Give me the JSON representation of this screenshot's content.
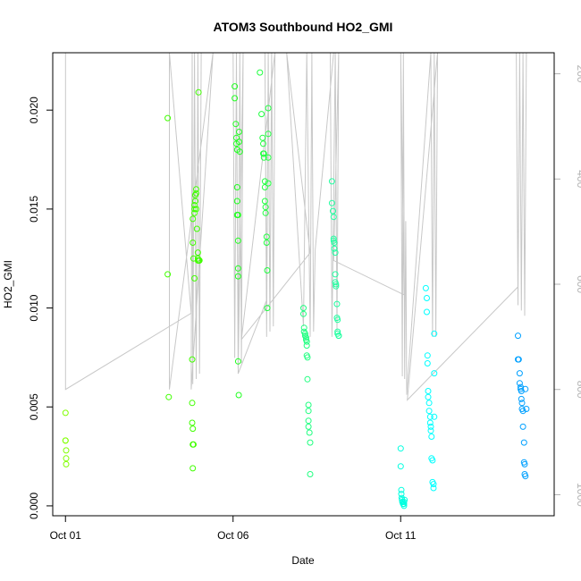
{
  "chart_data": {
    "type": "scatter",
    "title": "ATOM3 Southbound HO2_GMI",
    "xlabel": "Date",
    "ylabel": "HO2_GMI",
    "x_tick_labels": [
      "Oct 01",
      "Oct 06",
      "Oct 11"
    ],
    "x_tick_days": [
      1,
      6,
      11
    ],
    "xlim": [
      0.62,
      15.58
    ],
    "ylim": [
      -0.0005,
      0.0229
    ],
    "y_ticks": [
      0.0,
      0.005,
      0.01,
      0.015,
      0.02
    ],
    "y_tick_labels": [
      "0.000",
      "0.005",
      "0.010",
      "0.015",
      "0.020"
    ],
    "right_axis": {
      "ticks": [
        200,
        400,
        600,
        800,
        1000
      ],
      "tick_labels": [
        "200",
        "400",
        "600",
        "800",
        "1000"
      ],
      "lim": [
        1040,
        160
      ],
      "color": "#b3b3b3"
    },
    "profile_line": {
      "color": "#c8c8c8",
      "points": [
        [
          1.0,
          160
        ],
        [
          1.0,
          800
        ],
        [
          4.75,
          655
        ],
        [
          4.1,
          160
        ],
        [
          4.1,
          800
        ],
        [
          5.4,
          160
        ],
        [
          4.75,
          800
        ],
        [
          4.78,
          160
        ],
        [
          4.8,
          790
        ],
        [
          4.85,
          160
        ],
        [
          4.9,
          780
        ],
        [
          4.95,
          160
        ],
        [
          5.0,
          770
        ],
        [
          5.05,
          160
        ],
        [
          6.0,
          160
        ],
        [
          6.05,
          740
        ],
        [
          6.1,
          160
        ],
        [
          6.15,
          760
        ],
        [
          6.2,
          160
        ],
        [
          6.25,
          750
        ],
        [
          6.3,
          160
        ],
        [
          6.15,
          770
        ],
        [
          7.0,
          630
        ],
        [
          6.95,
          160
        ],
        [
          7.0,
          700
        ],
        [
          7.05,
          160
        ],
        [
          7.1,
          690
        ],
        [
          7.15,
          160
        ],
        [
          7.2,
          680
        ],
        [
          7.25,
          160
        ],
        [
          6.25,
          705
        ],
        [
          8.3,
          540
        ],
        [
          7.6,
          160
        ],
        [
          8.1,
          680
        ],
        [
          8.2,
          160
        ],
        [
          8.3,
          700
        ],
        [
          8.35,
          160
        ],
        [
          8.4,
          690
        ],
        [
          8.45,
          535
        ],
        [
          9.0,
          160
        ],
        [
          8.9,
          160
        ],
        [
          8.95,
          700
        ],
        [
          9.05,
          160
        ],
        [
          9.1,
          690
        ],
        [
          9.15,
          160
        ],
        [
          9.0,
          555
        ],
        [
          11.1,
          620
        ],
        [
          11.0,
          160
        ],
        [
          11.05,
          775
        ],
        [
          11.08,
          160
        ],
        [
          11.12,
          780
        ],
        [
          11.15,
          480
        ],
        [
          11.18,
          810
        ],
        [
          11.9,
          160
        ],
        [
          11.95,
          700
        ],
        [
          12.0,
          160
        ],
        [
          12.05,
          700
        ],
        [
          12.1,
          160
        ],
        [
          11.2,
          820
        ],
        [
          14.5,
          605
        ],
        [
          14.45,
          160
        ],
        [
          14.5,
          640
        ],
        [
          14.55,
          160
        ],
        [
          14.6,
          650
        ],
        [
          14.65,
          160
        ],
        [
          14.7,
          660
        ],
        [
          14.75,
          160
        ]
      ]
    },
    "series": [
      {
        "color": "#80ff00",
        "x": [
          1.0,
          1.0,
          1.02,
          1.02,
          1.02,
          1.0
        ],
        "y": [
          0.0047,
          0.0033,
          0.0028,
          0.0024,
          0.0021,
          0.0033
        ]
      },
      {
        "color": "#40ff00",
        "x": [
          4.05,
          4.05,
          4.08,
          4.78,
          4.78,
          4.78,
          4.8,
          4.8,
          4.82,
          4.8,
          4.8,
          4.8,
          4.82,
          4.85,
          4.85,
          4.85,
          4.85,
          4.87,
          4.87,
          4.9,
          4.9,
          4.9,
          4.92,
          4.95,
          4.95,
          4.95,
          4.97,
          4.97,
          4.99,
          5.0
        ],
        "y": [
          0.0196,
          0.0117,
          0.0055,
          0.0074,
          0.0052,
          0.0042,
          0.0039,
          0.0031,
          0.0031,
          0.0019,
          0.0145,
          0.0133,
          0.0125,
          0.0115,
          0.0148,
          0.015,
          0.0152,
          0.0154,
          0.0157,
          0.016,
          0.0158,
          0.015,
          0.014,
          0.0128,
          0.0125,
          0.0124,
          0.0124,
          0.0209,
          0.0124,
          0.0124
        ]
      },
      {
        "color": "#20ff20",
        "x": [
          6.05,
          6.05,
          6.08,
          6.1,
          6.1,
          6.12,
          6.12,
          6.12,
          6.12,
          6.15,
          6.15,
          6.15,
          6.15,
          6.15,
          6.17,
          6.18,
          6.18,
          6.2
        ],
        "y": [
          0.0212,
          0.0206,
          0.0193,
          0.0186,
          0.0183,
          0.018,
          0.0161,
          0.0154,
          0.0147,
          0.0147,
          0.0134,
          0.012,
          0.0116,
          0.0073,
          0.0056,
          0.0189,
          0.0184,
          0.0179
        ]
      },
      {
        "color": "#20ff40",
        "x": [
          6.8,
          6.85,
          6.88,
          6.9,
          6.9,
          6.92,
          6.92,
          6.95,
          6.95,
          6.95,
          6.97,
          6.97,
          7.0,
          7.0,
          7.02,
          7.02,
          7.05,
          7.05,
          7.05,
          7.05
        ],
        "y": [
          0.0219,
          0.0198,
          0.0186,
          0.0183,
          0.0178,
          0.0176,
          0.0178,
          0.0164,
          0.0161,
          0.0154,
          0.0151,
          0.0148,
          0.0136,
          0.0133,
          0.0119,
          0.01,
          0.0201,
          0.0188,
          0.0176,
          0.0163
        ]
      },
      {
        "color": "#20ff80",
        "x": [
          8.1,
          8.1,
          8.12,
          8.12,
          8.15,
          8.15,
          8.18,
          8.18,
          8.2,
          8.2,
          8.2,
          8.22,
          8.22,
          8.25,
          8.25,
          8.25,
          8.25,
          8.28,
          8.3,
          8.3
        ],
        "y": [
          0.01,
          0.0097,
          0.009,
          0.0088,
          0.0087,
          0.0086,
          0.0085,
          0.0084,
          0.0083,
          0.0081,
          0.0076,
          0.0075,
          0.0064,
          0.0051,
          0.0048,
          0.0043,
          0.004,
          0.0037,
          0.0032,
          0.0016
        ]
      },
      {
        "color": "#20ffa0",
        "x": [
          8.95,
          8.95,
          8.98,
          9.0,
          9.0,
          9.0,
          9.02,
          9.02,
          9.05,
          9.05,
          9.05,
          9.07,
          9.07,
          9.1,
          9.1,
          9.12,
          9.12,
          9.12,
          9.15,
          9.15
        ],
        "y": [
          0.0164,
          0.0153,
          0.0149,
          0.0146,
          0.0135,
          0.0134,
          0.0133,
          0.013,
          0.0128,
          0.0117,
          0.0113,
          0.0112,
          0.0111,
          0.0102,
          0.0095,
          0.0094,
          0.0088,
          0.0087,
          0.0086,
          0.0086
        ]
      },
      {
        "color": "#00ffe0",
        "x": [
          11.0,
          11.0,
          11.02,
          11.02,
          11.03,
          11.04,
          11.05,
          11.06,
          11.07,
          11.08,
          11.09,
          11.1,
          11.1,
          11.1,
          11.12
        ],
        "y": [
          0.0029,
          0.002,
          0.0008,
          0.0006,
          0.0004,
          0.0003,
          0.0002,
          0.0002,
          0.0001,
          0.0001,
          0.0001,
          0.0,
          0.0001,
          0.0002,
          0.0003
        ]
      },
      {
        "color": "#00ffff",
        "x": [
          11.75,
          11.78,
          11.78,
          11.8,
          11.8,
          11.82,
          11.82,
          11.85,
          11.85,
          11.88,
          11.88,
          11.9,
          11.9,
          11.92,
          11.92,
          11.95,
          11.95,
          11.98,
          11.98,
          12.0,
          12.0,
          12.0
        ],
        "y": [
          0.011,
          0.0105,
          0.0098,
          0.0076,
          0.0072,
          0.0058,
          0.0055,
          0.0052,
          0.0048,
          0.0045,
          0.0042,
          0.004,
          0.0038,
          0.0035,
          0.0024,
          0.0023,
          0.0012,
          0.0011,
          0.0009,
          0.0087,
          0.0067,
          0.0045
        ]
      },
      {
        "color": "#00a0ff",
        "x": [
          14.5,
          14.5,
          14.52,
          14.55,
          14.55,
          14.58,
          14.58,
          14.6,
          14.6,
          14.62,
          14.62,
          14.65,
          14.65,
          14.68,
          14.68,
          14.7,
          14.7,
          14.72,
          14.72,
          14.75
        ],
        "y": [
          0.0086,
          0.0074,
          0.0074,
          0.0067,
          0.0062,
          0.006,
          0.0059,
          0.0058,
          0.0054,
          0.0052,
          0.0049,
          0.0048,
          0.004,
          0.0032,
          0.0022,
          0.0021,
          0.0016,
          0.0015,
          0.0059,
          0.0049
        ]
      }
    ]
  }
}
